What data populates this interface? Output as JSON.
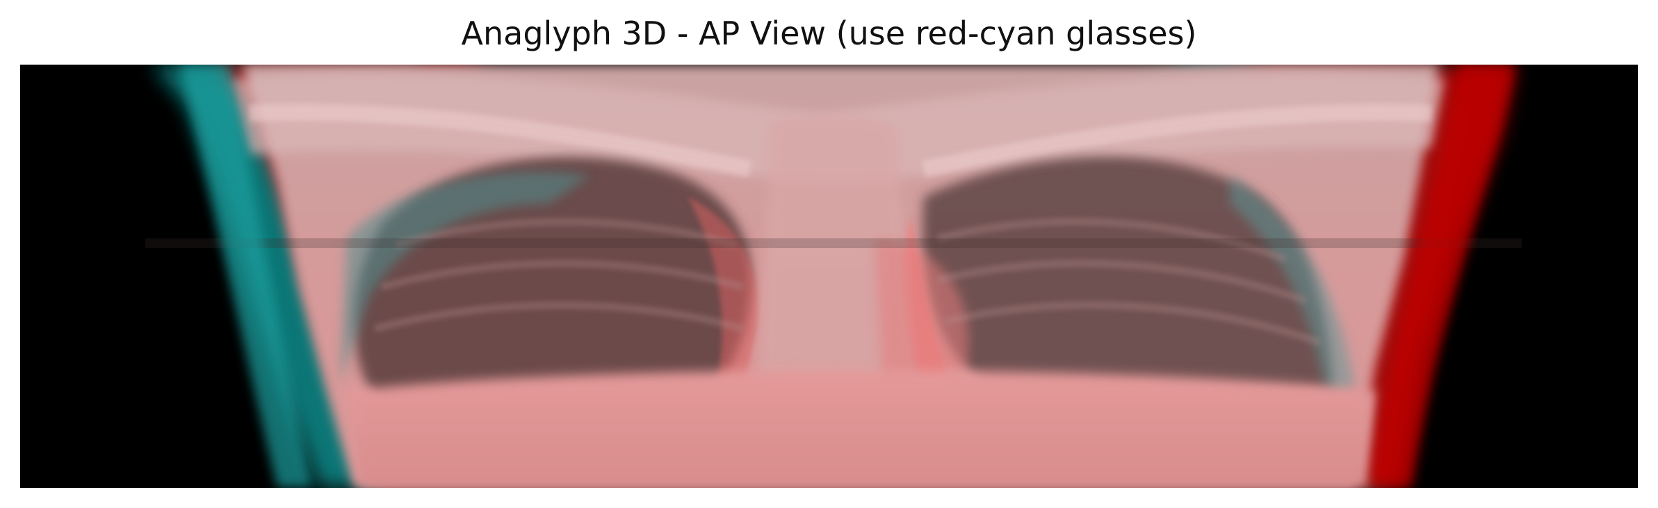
{
  "figure": {
    "title": "Anaglyph 3D - AP View (use red-cyan glasses)"
  },
  "image": {
    "subject": "chest-xray-anaglyph",
    "left_channel_color": "#ff5a5a",
    "right_channel_color": "#19a3a3",
    "background_color": "#000000"
  }
}
